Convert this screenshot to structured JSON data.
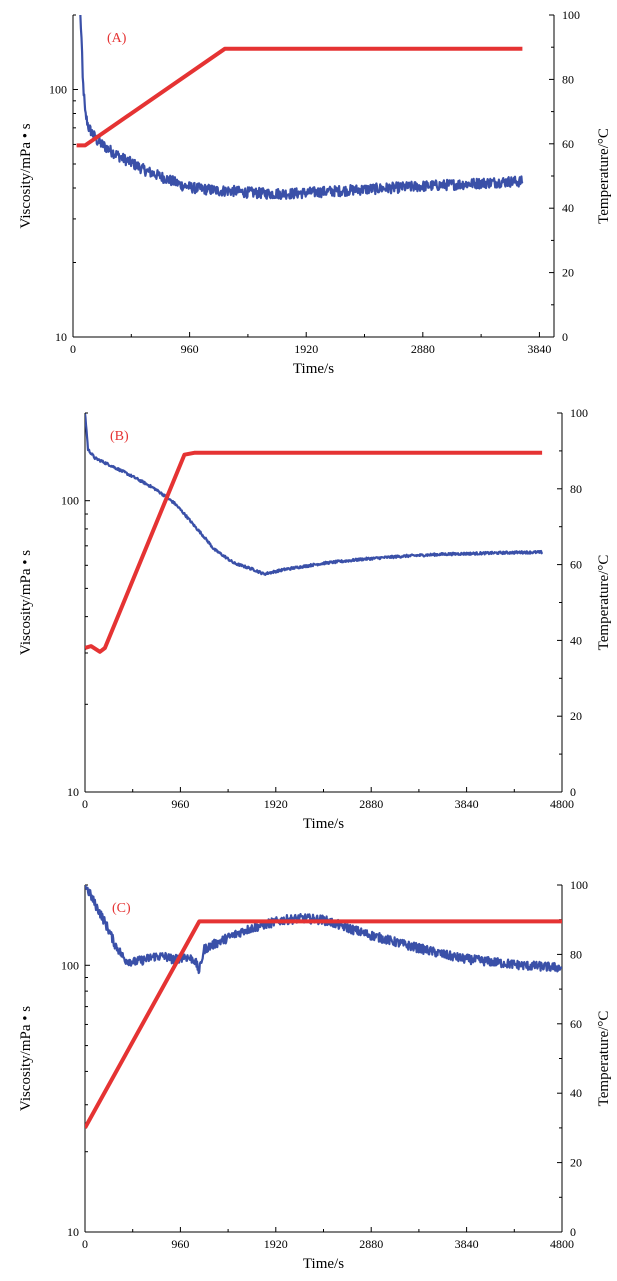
{
  "chart_data": [
    {
      "type": "line",
      "panel_label": "(A)",
      "xlabel": "Time/s",
      "ylabel_left": "Viscosity/mPa • s",
      "ylabel_right": "Temperature/°C",
      "xlim": [
        0,
        3960
      ],
      "xticks": [
        0,
        960,
        1920,
        2880,
        3840
      ],
      "ylim_left": [
        10,
        200
      ],
      "yscale_left": "log",
      "yticks_left": [
        10,
        100
      ],
      "ylim_right": [
        0,
        100
      ],
      "yticks_right": [
        0,
        20,
        40,
        60,
        80,
        100
      ],
      "series": [
        {
          "color": "#3a50a8",
          "axis": "left",
          "noise": 0.05,
          "points": [
            [
              60,
              200
            ],
            [
              70,
              160
            ],
            [
              80,
              110
            ],
            [
              100,
              80
            ],
            [
              130,
              70
            ],
            [
              200,
              62
            ],
            [
              300,
              57
            ],
            [
              400,
              53
            ],
            [
              500,
              50
            ],
            [
              600,
              47
            ],
            [
              700,
              45
            ],
            [
              800,
              43
            ],
            [
              900,
              41
            ],
            [
              1000,
              40
            ],
            [
              1100,
              39.5
            ],
            [
              1200,
              39
            ],
            [
              1300,
              39
            ],
            [
              1400,
              38.5
            ],
            [
              1600,
              38
            ],
            [
              1800,
              38
            ],
            [
              2000,
              38.5
            ],
            [
              2200,
              39
            ],
            [
              2400,
              39.5
            ],
            [
              2600,
              40
            ],
            [
              2800,
              40.5
            ],
            [
              3000,
              41
            ],
            [
              3200,
              41.5
            ],
            [
              3400,
              42
            ],
            [
              3600,
              42.5
            ],
            [
              3700,
              42.5
            ]
          ]
        },
        {
          "color": "#e53333",
          "axis": "right",
          "noise": 0,
          "points": [
            [
              30,
              59.5
            ],
            [
              100,
              59.5
            ],
            [
              1250,
              89.5
            ],
            [
              3700,
              89.5
            ]
          ]
        }
      ]
    },
    {
      "type": "line",
      "panel_label": "(B)",
      "xlabel": "Time/s",
      "ylabel_left": "Viscosity/mPa • s",
      "ylabel_right": "Temperature/°C",
      "xlim": [
        0,
        4800
      ],
      "xticks": [
        0,
        960,
        1920,
        2880,
        3840,
        4800
      ],
      "ylim_left": [
        10,
        200
      ],
      "yscale_left": "log",
      "yticks_left": [
        10,
        100
      ],
      "ylim_right": [
        0,
        100
      ],
      "yticks_right": [
        0,
        20,
        40,
        60,
        80,
        100
      ],
      "series": [
        {
          "color": "#3a50a8",
          "axis": "left",
          "noise": 0.01,
          "points": [
            [
              0,
              200
            ],
            [
              15,
              175
            ],
            [
              30,
              150
            ],
            [
              100,
              140
            ],
            [
              300,
              130
            ],
            [
              500,
              120
            ],
            [
              700,
              110
            ],
            [
              900,
              98
            ],
            [
              1100,
              82
            ],
            [
              1300,
              68
            ],
            [
              1500,
              61
            ],
            [
              1700,
              58
            ],
            [
              1800,
              56
            ],
            [
              2000,
              58
            ],
            [
              2400,
              61
            ],
            [
              2800,
              63
            ],
            [
              3200,
              64.5
            ],
            [
              3600,
              65.5
            ],
            [
              4000,
              66
            ],
            [
              4400,
              66.5
            ],
            [
              4600,
              66.5
            ]
          ]
        },
        {
          "color": "#e53333",
          "axis": "right",
          "noise": 0,
          "points": [
            [
              0,
              38
            ],
            [
              60,
              38.5
            ],
            [
              150,
              37
            ],
            [
              200,
              38
            ],
            [
              1000,
              89
            ],
            [
              1100,
              89.5
            ],
            [
              4600,
              89.5
            ]
          ]
        }
      ]
    },
    {
      "type": "line",
      "panel_label": "(C)",
      "xlabel": "Time/s",
      "ylabel_left": "Viscosity/mPa • s",
      "ylabel_right": "Temperature/°C",
      "xlim": [
        0,
        4800
      ],
      "xticks": [
        0,
        960,
        1920,
        2880,
        3840,
        4800
      ],
      "ylim_left": [
        10,
        200
      ],
      "yscale_left": "log",
      "yticks_left": [
        10,
        100
      ],
      "ylim_right": [
        0,
        100
      ],
      "yticks_right": [
        0,
        20,
        40,
        60,
        80,
        100
      ],
      "series": [
        {
          "color": "#3a50a8",
          "axis": "left",
          "noise": 0.04,
          "points": [
            [
              0,
              200
            ],
            [
              100,
              170
            ],
            [
              200,
              145
            ],
            [
              300,
              120
            ],
            [
              400,
              105
            ],
            [
              500,
              103
            ],
            [
              600,
              105
            ],
            [
              700,
              108
            ],
            [
              800,
              108
            ],
            [
              900,
              105
            ],
            [
              1000,
              108
            ],
            [
              1100,
              105
            ],
            [
              1150,
              95
            ],
            [
              1200,
              115
            ],
            [
              1400,
              125
            ],
            [
              1600,
              135
            ],
            [
              1800,
              142
            ],
            [
              2000,
              148
            ],
            [
              2200,
              150
            ],
            [
              2400,
              148
            ],
            [
              2600,
              140
            ],
            [
              2800,
              132
            ],
            [
              3000,
              126
            ],
            [
              3200,
              120
            ],
            [
              3400,
              115
            ],
            [
              3600,
              110
            ],
            [
              3800,
              106
            ],
            [
              4000,
              104
            ],
            [
              4200,
              102
            ],
            [
              4400,
              100
            ],
            [
              4600,
              99
            ],
            [
              4800,
              98
            ]
          ]
        },
        {
          "color": "#e53333",
          "axis": "right",
          "noise": 0,
          "points": [
            [
              0,
              30
            ],
            [
              1150,
              89.5
            ],
            [
              4800,
              89.5
            ]
          ]
        }
      ]
    }
  ]
}
